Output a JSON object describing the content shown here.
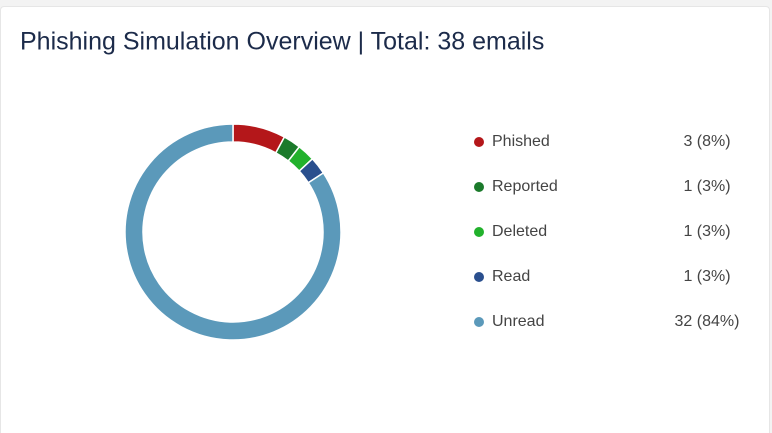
{
  "chart_data": {
    "type": "donut",
    "title": "Phishing Simulation Overview | Total: 38 emails",
    "categories": [
      "Phished",
      "Reported",
      "Deleted",
      "Read",
      "Unread"
    ],
    "values": [
      3,
      1,
      1,
      1,
      32
    ],
    "value_labels": [
      "3 (8%)",
      "1 (3%)",
      "1 (3%)",
      "1 (3%)",
      "32 (84%)"
    ],
    "colors": [
      "#b4171a",
      "#1b7a2b",
      "#22b12c",
      "#2a4f8e",
      "#5b99ba"
    ]
  }
}
